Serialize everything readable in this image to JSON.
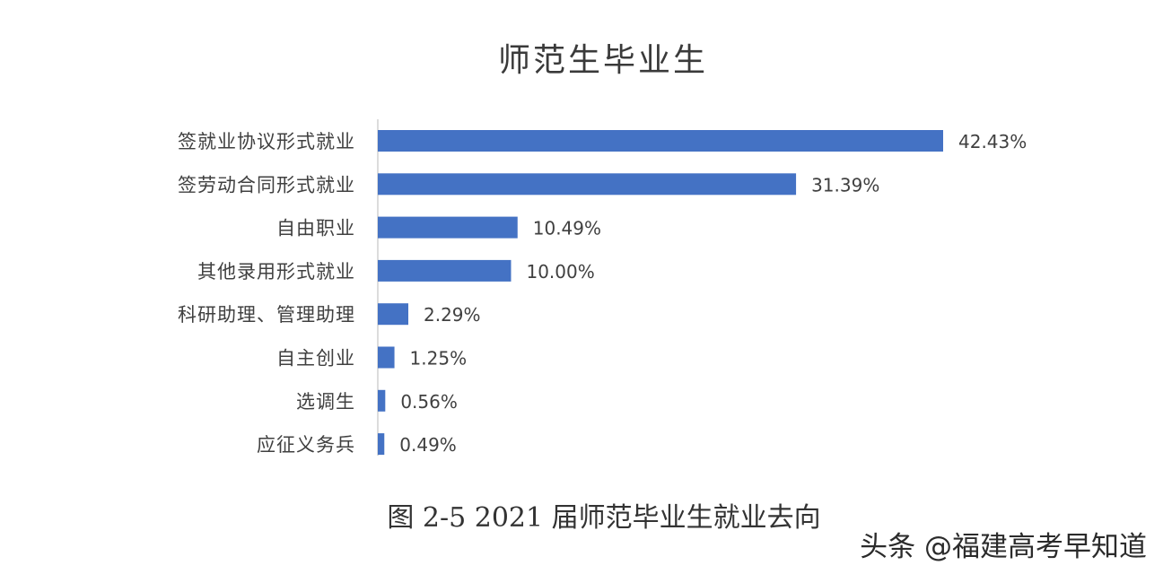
{
  "chart_data": {
    "type": "bar",
    "orientation": "horizontal",
    "title": "师范生毕业生",
    "categories": [
      "签就业协议形式就业",
      "签劳动合同形式就业",
      "自由职业",
      "其他录用形式就业",
      "科研助理、管理助理",
      "自主创业",
      "选调生",
      "应征义务兵"
    ],
    "values": [
      42.43,
      31.39,
      10.49,
      10.0,
      2.29,
      1.25,
      0.56,
      0.49
    ],
    "value_labels": [
      "42.43%",
      "31.39%",
      "10.49%",
      "10.00%",
      "2.29%",
      "1.25%",
      "0.56%",
      "0.49%"
    ],
    "unit": "%",
    "xlim": [
      0,
      45
    ],
    "grid": false,
    "legend": "none",
    "bar_color": "#4472c4"
  },
  "caption": "图 2-5 2021 届师范毕业生就业去向",
  "watermark": "头条 @福建高考早知道"
}
